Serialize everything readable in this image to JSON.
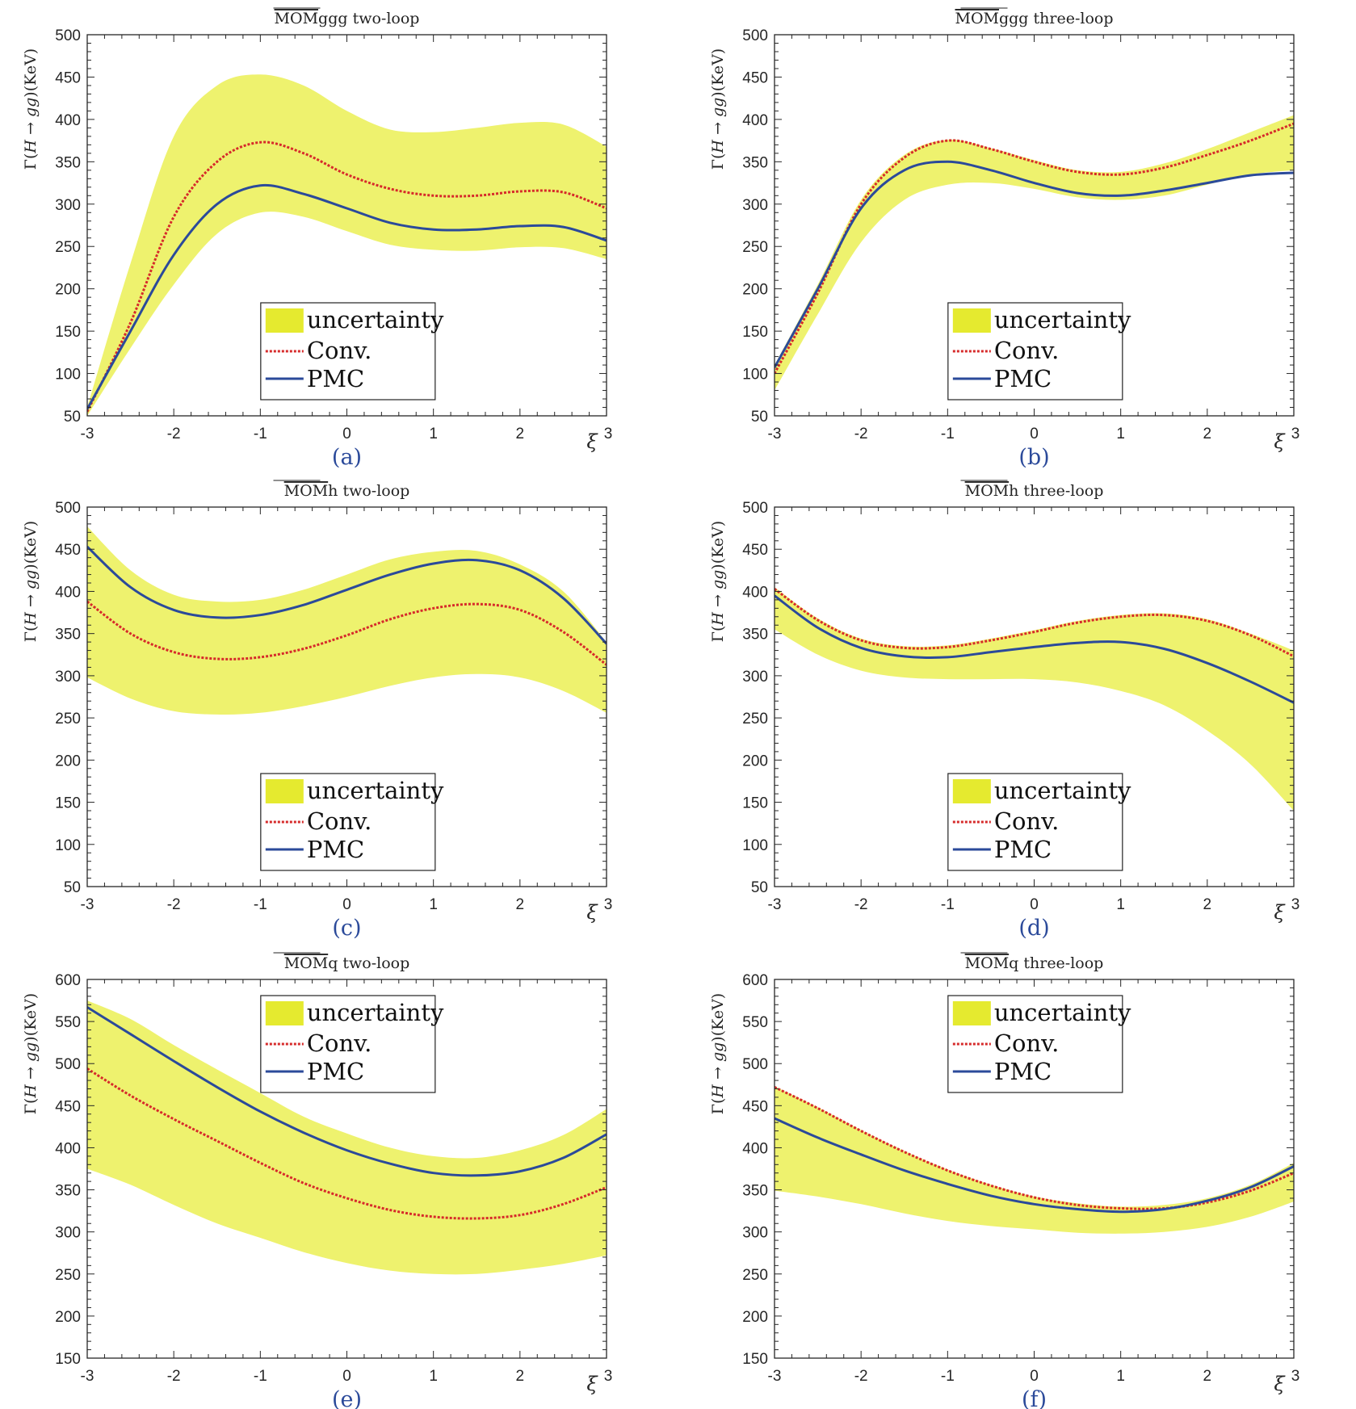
{
  "colors": {
    "band": "#eef26e",
    "band_swatch": "#e5ea2f",
    "conv": "#d62a2a",
    "pmc": "#2b4a9a",
    "axis": "#262626",
    "panel_label": "#2b4a9a"
  },
  "axis_label_y": "Γ(H → gg)(KeV)",
  "axis_label_y_parts": {
    "gamma": "Γ(",
    "h": "H",
    "arrow": " → ",
    "gg": "gg",
    "close": ")(KeV)"
  },
  "axis_label_x": "ξ",
  "legend": {
    "band": "uncertainty",
    "conv": "Conv.",
    "pmc": "PMC"
  },
  "chart_data": [
    {
      "type": "line",
      "id": "a",
      "panel_label": "(a)",
      "title_overline": "MOM",
      "title_rest": "ggg two-loop",
      "xlabel": "ξ",
      "ylabel": "Γ(H → gg)(KeV)",
      "xlim": [
        -3,
        3
      ],
      "ylim": [
        50,
        500
      ],
      "xticks": [
        -3,
        -2,
        -1,
        0,
        1,
        2,
        3
      ],
      "yticks": [
        50,
        100,
        150,
        200,
        250,
        300,
        350,
        400,
        450,
        500
      ],
      "legend_position": "bottom-center",
      "x": [
        -3,
        -2.5,
        -2,
        -1.5,
        -1,
        -0.5,
        0,
        0.5,
        1,
        1.5,
        2,
        2.5,
        3
      ],
      "series": [
        {
          "name": "uncertainty upper",
          "values": [
            60,
            230,
            380,
            440,
            453,
            440,
            410,
            388,
            385,
            390,
            396,
            394,
            368
          ]
        },
        {
          "name": "uncertainty lower",
          "values": [
            50,
            130,
            205,
            265,
            290,
            285,
            268,
            252,
            246,
            245,
            249,
            248,
            235
          ]
        },
        {
          "name": "Conv.",
          "values": [
            55,
            160,
            285,
            350,
            373,
            360,
            335,
            318,
            310,
            310,
            315,
            314,
            295
          ]
        },
        {
          "name": "PMC",
          "values": [
            58,
            150,
            240,
            300,
            322,
            312,
            295,
            278,
            270,
            270,
            274,
            273,
            257
          ]
        }
      ]
    },
    {
      "type": "line",
      "id": "b",
      "panel_label": "(b)",
      "title_overline": "MOM",
      "title_rest": "ggg three-loop",
      "xlabel": "ξ",
      "ylabel": "Γ(H → gg)(KeV)",
      "xlim": [
        -3,
        3
      ],
      "ylim": [
        50,
        500
      ],
      "xticks": [
        -3,
        -2,
        -1,
        0,
        1,
        2,
        3
      ],
      "yticks": [
        50,
        100,
        150,
        200,
        250,
        300,
        350,
        400,
        450,
        500
      ],
      "legend_position": "bottom-center",
      "x": [
        -3,
        -2.5,
        -2,
        -1.5,
        -1,
        -0.5,
        0,
        0.5,
        1,
        1.5,
        2,
        2.5,
        3
      ],
      "series": [
        {
          "name": "uncertainty upper",
          "values": [
            110,
            205,
            305,
            358,
            376,
            366,
            352,
            340,
            338,
            348,
            365,
            385,
            405
          ]
        },
        {
          "name": "uncertainty lower",
          "values": [
            80,
            170,
            255,
            305,
            323,
            325,
            318,
            308,
            305,
            310,
            323,
            335,
            340
          ]
        },
        {
          "name": "Conv.",
          "values": [
            100,
            195,
            300,
            355,
            375,
            365,
            350,
            338,
            335,
            343,
            358,
            375,
            395
          ]
        },
        {
          "name": "PMC",
          "values": [
            107,
            200,
            295,
            340,
            350,
            340,
            325,
            313,
            310,
            316,
            325,
            334,
            337
          ]
        }
      ]
    },
    {
      "type": "line",
      "id": "c",
      "panel_label": "(c)",
      "title_overline": "MOM",
      "title_rest": "h two-loop",
      "xlabel": "ξ",
      "ylabel": "Γ(H → gg)(KeV)",
      "xlim": [
        -3,
        3
      ],
      "ylim": [
        50,
        500
      ],
      "xticks": [
        -3,
        -2,
        -1,
        0,
        1,
        2,
        3
      ],
      "yticks": [
        50,
        100,
        150,
        200,
        250,
        300,
        350,
        400,
        450,
        500
      ],
      "legend_position": "bottom-center",
      "x": [
        -3,
        -2.5,
        -2,
        -1.5,
        -1,
        -0.5,
        0,
        0.5,
        1,
        1.5,
        2,
        2.5,
        3
      ],
      "series": [
        {
          "name": "uncertainty upper",
          "values": [
            477,
            425,
            396,
            388,
            390,
            402,
            420,
            438,
            447,
            448,
            432,
            400,
            340
          ]
        },
        {
          "name": "uncertainty lower",
          "values": [
            298,
            273,
            258,
            254,
            256,
            264,
            275,
            288,
            298,
            302,
            298,
            282,
            256
          ]
        },
        {
          "name": "Conv.",
          "values": [
            388,
            350,
            328,
            320,
            322,
            332,
            348,
            367,
            380,
            385,
            378,
            352,
            313
          ]
        },
        {
          "name": "PMC",
          "values": [
            453,
            405,
            378,
            369,
            372,
            384,
            402,
            420,
            433,
            437,
            425,
            392,
            338
          ]
        }
      ]
    },
    {
      "type": "line",
      "id": "d",
      "panel_label": "(d)",
      "title_overline": "MOM",
      "title_rest": "h three-loop",
      "xlabel": "ξ",
      "ylabel": "Γ(H → gg)(KeV)",
      "xlim": [
        -3,
        3
      ],
      "ylim": [
        50,
        500
      ],
      "xticks": [
        -3,
        -2,
        -1,
        0,
        1,
        2,
        3
      ],
      "yticks": [
        50,
        100,
        150,
        200,
        250,
        300,
        350,
        400,
        450,
        500
      ],
      "legend_position": "bottom-center",
      "x": [
        -3,
        -2.5,
        -2,
        -1.5,
        -1,
        -0.5,
        0,
        0.5,
        1,
        1.5,
        2,
        2.5,
        3
      ],
      "series": [
        {
          "name": "uncertainty upper",
          "values": [
            405,
            368,
            344,
            335,
            336,
            344,
            354,
            365,
            372,
            374,
            367,
            350,
            330
          ]
        },
        {
          "name": "uncertainty lower",
          "values": [
            355,
            325,
            306,
            298,
            296,
            296,
            296,
            292,
            282,
            265,
            235,
            195,
            140
          ]
        },
        {
          "name": "Conv.",
          "values": [
            403,
            366,
            342,
            333,
            334,
            342,
            352,
            363,
            370,
            372,
            365,
            348,
            323
          ]
        },
        {
          "name": "PMC",
          "values": [
            395,
            357,
            333,
            323,
            322,
            328,
            334,
            339,
            340,
            332,
            315,
            293,
            268
          ]
        }
      ]
    },
    {
      "type": "line",
      "id": "e",
      "panel_label": "(e)",
      "title_overline": "MOM",
      "title_rest": "q two-loop",
      "xlabel": "ξ",
      "ylabel": "Γ(H → gg)(KeV)",
      "xlim": [
        -3,
        3
      ],
      "ylim": [
        150,
        600
      ],
      "xticks": [
        -3,
        -2,
        -1,
        0,
        1,
        2,
        3
      ],
      "yticks": [
        150,
        200,
        250,
        300,
        350,
        400,
        450,
        500,
        550,
        600
      ],
      "legend_position": "top-center",
      "x": [
        -3,
        -2.5,
        -2,
        -1.5,
        -1,
        -0.5,
        0,
        0.5,
        1,
        1.5,
        2,
        2.5,
        3
      ],
      "series": [
        {
          "name": "uncertainty upper",
          "values": [
            575,
            553,
            522,
            493,
            465,
            437,
            417,
            400,
            390,
            388,
            397,
            415,
            446
          ]
        },
        {
          "name": "uncertainty lower",
          "values": [
            375,
            356,
            332,
            310,
            293,
            276,
            263,
            254,
            250,
            250,
            255,
            262,
            272
          ]
        },
        {
          "name": "Conv.",
          "values": [
            494,
            462,
            434,
            408,
            382,
            358,
            340,
            326,
            318,
            316,
            320,
            333,
            353
          ]
        },
        {
          "name": "PMC",
          "values": [
            567,
            535,
            503,
            472,
            443,
            418,
            397,
            381,
            370,
            367,
            372,
            388,
            416
          ]
        }
      ]
    },
    {
      "type": "line",
      "id": "f",
      "panel_label": "(f)",
      "title_overline": "MOM",
      "title_rest": "q three-loop",
      "xlabel": "ξ",
      "ylabel": "Γ(H → gg)(KeV)",
      "xlim": [
        -3,
        3
      ],
      "ylim": [
        150,
        600
      ],
      "xticks": [
        -3,
        -2,
        -1,
        0,
        1,
        2,
        3
      ],
      "yticks": [
        150,
        200,
        250,
        300,
        350,
        400,
        450,
        500,
        550,
        600
      ],
      "legend_position": "top-center",
      "x": [
        -3,
        -2.5,
        -2,
        -1.5,
        -1,
        -0.5,
        0,
        0.5,
        1,
        1.5,
        2,
        2.5,
        3
      ],
      "series": [
        {
          "name": "uncertainty upper",
          "values": [
            473,
            448,
            421,
            396,
            374,
            356,
            342,
            334,
            330,
            332,
            340,
            356,
            382
          ]
        },
        {
          "name": "uncertainty lower",
          "values": [
            349,
            342,
            333,
            322,
            313,
            307,
            303,
            299,
            298,
            300,
            306,
            318,
            336
          ]
        },
        {
          "name": "Conv.",
          "values": [
            472,
            447,
            420,
            395,
            373,
            355,
            341,
            332,
            328,
            328,
            335,
            349,
            370
          ]
        },
        {
          "name": "PMC",
          "values": [
            435,
            412,
            392,
            373,
            357,
            343,
            333,
            327,
            324,
            327,
            337,
            353,
            378
          ]
        }
      ]
    }
  ]
}
